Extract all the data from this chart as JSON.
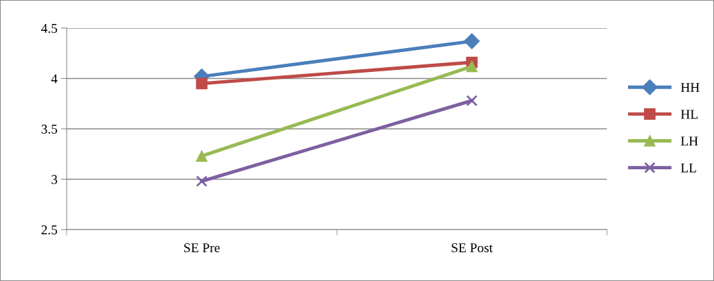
{
  "chart_data": {
    "type": "line",
    "categories": [
      "SE Pre",
      "SE Post"
    ],
    "series": [
      {
        "name": "HH",
        "color": "#4a7ebb",
        "marker": "diamond",
        "values": [
          4.02,
          4.37
        ]
      },
      {
        "name": "HL",
        "color": "#be4b48",
        "marker": "square",
        "values": [
          3.95,
          4.16
        ]
      },
      {
        "name": "LH",
        "color": "#98b954",
        "marker": "triangle",
        "values": [
          3.23,
          4.12
        ]
      },
      {
        "name": "LL",
        "color": "#7d60a0",
        "marker": "cross",
        "values": [
          2.98,
          3.78
        ]
      }
    ],
    "ylim": [
      2.5,
      4.5
    ],
    "yticks": [
      2.5,
      3,
      3.5,
      4,
      4.5
    ],
    "grid": "y",
    "legend": "right",
    "line_style": "solid"
  }
}
